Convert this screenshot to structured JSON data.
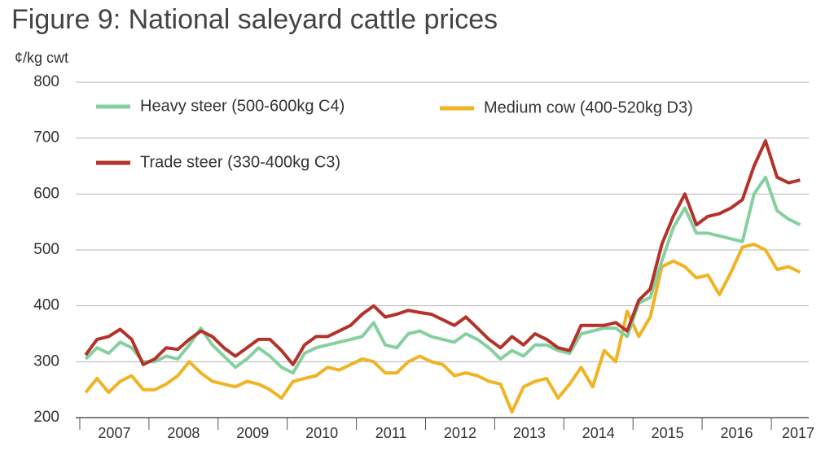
{
  "chart_data": {
    "type": "line",
    "title": "Figure 9: National saleyard cattle prices",
    "y_label": "¢/kg cwt",
    "categories": [
      "2007",
      null,
      null,
      null,
      null,
      null,
      "2008",
      null,
      null,
      null,
      null,
      null,
      "2009",
      null,
      null,
      null,
      null,
      null,
      "2010",
      null,
      null,
      null,
      null,
      null,
      "2011",
      null,
      null,
      null,
      null,
      null,
      "2012",
      null,
      null,
      null,
      null,
      null,
      "2013",
      null,
      null,
      null,
      null,
      null,
      "2014",
      null,
      null,
      null,
      null,
      null,
      "2015",
      null,
      null,
      null,
      null,
      null,
      "2016",
      null,
      null,
      null,
      null,
      null,
      "2017",
      null,
      null
    ],
    "series": [
      {
        "name": "Heavy steer (500-600kg C4)",
        "color": "#86cf9f",
        "values": [
          305,
          325,
          315,
          335,
          325,
          300,
          300,
          310,
          305,
          330,
          360,
          330,
          310,
          290,
          305,
          325,
          310,
          290,
          280,
          315,
          325,
          330,
          335,
          340,
          345,
          370,
          330,
          325,
          350,
          355,
          345,
          340,
          335,
          350,
          340,
          325,
          305,
          320,
          310,
          330,
          330,
          320,
          315,
          350,
          355,
          360,
          360,
          345,
          405,
          415,
          480,
          540,
          575,
          530,
          530,
          525,
          520,
          515,
          600,
          630,
          570,
          555,
          545
        ]
      },
      {
        "name": "Medium cow (400-520kg D3)",
        "color": "#f0b323",
        "values": [
          245,
          270,
          245,
          265,
          275,
          250,
          250,
          260,
          275,
          300,
          280,
          265,
          260,
          255,
          265,
          260,
          250,
          235,
          265,
          270,
          275,
          290,
          285,
          295,
          305,
          300,
          280,
          280,
          300,
          310,
          300,
          295,
          275,
          280,
          275,
          265,
          260,
          210,
          255,
          265,
          270,
          235,
          260,
          290,
          255,
          320,
          300,
          390,
          345,
          380,
          470,
          480,
          470,
          450,
          455,
          420,
          460,
          505,
          510,
          500,
          465,
          470,
          460
        ]
      },
      {
        "name": "Trade steer (330-400kg C3)",
        "color": "#b3322a",
        "values": [
          312,
          340,
          345,
          358,
          340,
          295,
          305,
          325,
          322,
          340,
          355,
          345,
          325,
          310,
          325,
          340,
          340,
          320,
          295,
          330,
          345,
          345,
          355,
          365,
          385,
          400,
          380,
          385,
          392,
          388,
          385,
          375,
          365,
          380,
          360,
          340,
          325,
          345,
          330,
          350,
          340,
          325,
          320,
          365,
          365,
          365,
          370,
          355,
          410,
          430,
          510,
          560,
          600,
          545,
          560,
          565,
          575,
          590,
          650,
          695,
          630,
          620,
          625
        ]
      }
    ],
    "ylim": [
      200,
      800
    ],
    "yticks": [
      200,
      300,
      400,
      500,
      600,
      700,
      800
    ],
    "grid": true
  }
}
